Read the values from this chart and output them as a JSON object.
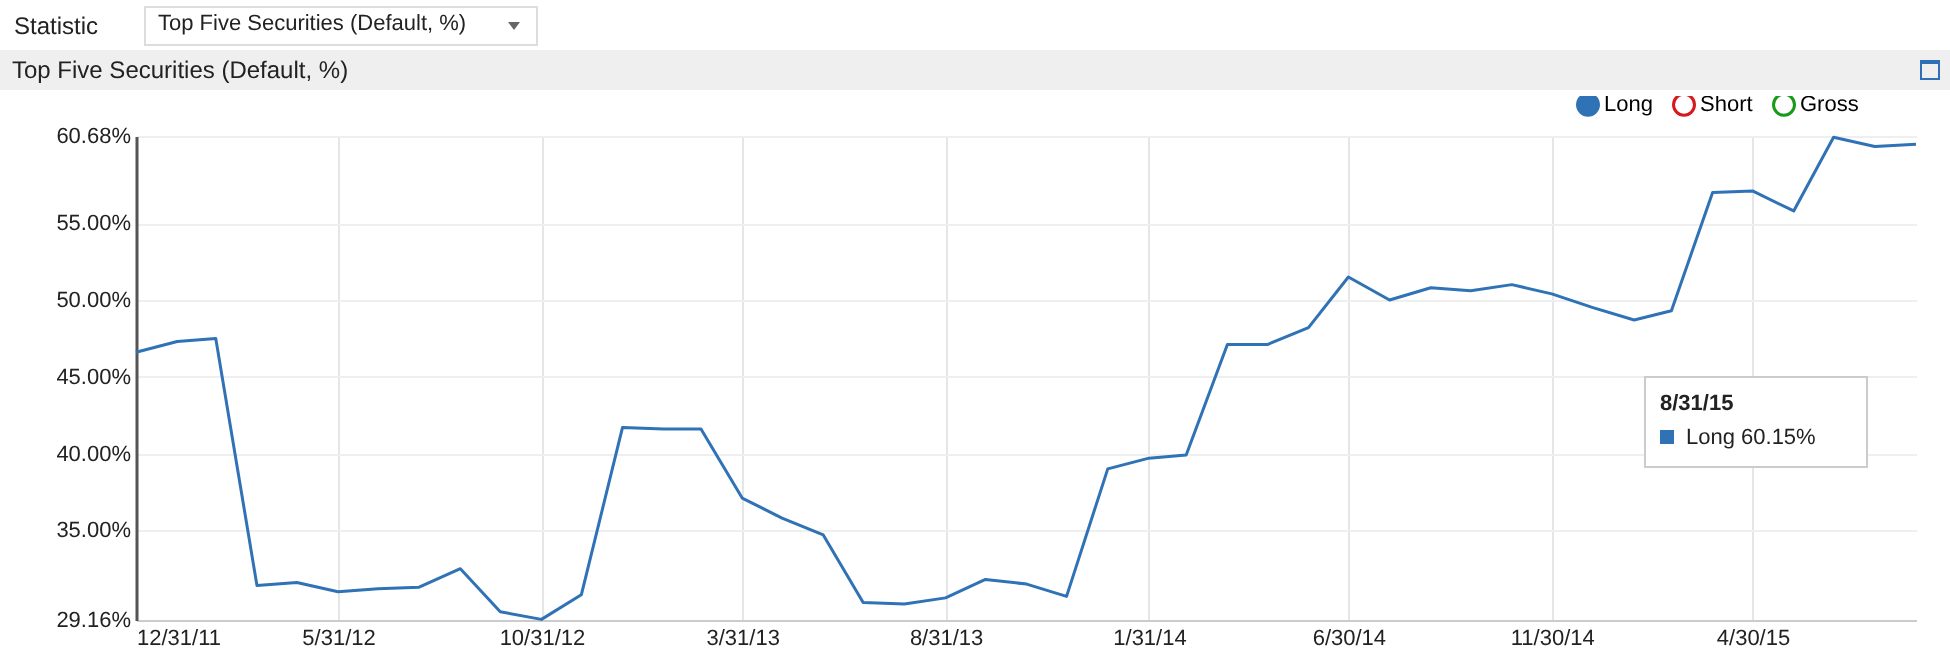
{
  "chart_data": {
    "type": "line",
    "title": "Top Five Securities (Default, %)",
    "annotations": [
      "Statistic",
      "Top Five Securities (Default, %)",
      "8/31/15",
      "Long 60.15%"
    ],
    "x": [
      "2011-12-31",
      "2012-01-31",
      "2012-02-29",
      "2012-03-31",
      "2012-04-30",
      "2012-05-31",
      "2012-06-30",
      "2012-07-31",
      "2012-08-31",
      "2012-09-30",
      "2012-10-31",
      "2012-11-30",
      "2012-12-31",
      "2013-01-31",
      "2013-02-28",
      "2013-03-31",
      "2013-04-30",
      "2013-05-31",
      "2013-06-30",
      "2013-07-31",
      "2013-08-31",
      "2013-09-30",
      "2013-10-31",
      "2013-11-30",
      "2013-12-31",
      "2014-01-31",
      "2014-02-28",
      "2014-03-31",
      "2014-04-30",
      "2014-05-31",
      "2014-06-30",
      "2014-07-31",
      "2014-08-31",
      "2014-09-30",
      "2014-10-31",
      "2014-11-30",
      "2014-12-31",
      "2015-01-31",
      "2015-02-28",
      "2015-03-31",
      "2015-04-30",
      "2015-05-31",
      "2015-06-30",
      "2015-07-31",
      "2015-08-31"
    ],
    "series": [
      {
        "name": "Long",
        "color": "#2f72b5",
        "values": [
          46.6,
          47.3,
          47.5,
          31.4,
          31.6,
          31.0,
          31.2,
          31.3,
          32.5,
          29.7,
          29.2,
          30.8,
          41.7,
          41.6,
          41.6,
          37.1,
          35.8,
          34.7,
          30.3,
          30.2,
          30.6,
          31.8,
          31.5,
          30.7,
          39.0,
          39.7,
          39.9,
          47.1,
          47.1,
          48.2,
          51.5,
          50.0,
          50.8,
          50.6,
          51.0,
          50.4,
          49.5,
          48.7,
          49.3,
          57.0,
          57.1,
          55.8,
          60.6,
          60.0,
          60.15
        ]
      },
      {
        "name": "Short",
        "color": "#d7191c",
        "values": [
          null,
          null,
          null,
          null,
          null,
          null,
          null,
          null,
          null,
          null,
          null,
          null,
          null,
          null,
          null,
          null,
          null,
          null,
          null,
          null,
          null,
          null,
          null,
          null,
          null,
          null,
          null,
          null,
          null,
          null,
          null,
          null,
          null,
          null,
          null,
          null,
          null,
          null,
          null,
          null,
          null,
          null,
          null,
          null,
          null
        ]
      },
      {
        "name": "Gross",
        "color": "#1a9a1a",
        "values": [
          null,
          null,
          null,
          null,
          null,
          null,
          null,
          null,
          null,
          null,
          null,
          null,
          null,
          null,
          null,
          null,
          null,
          null,
          null,
          null,
          null,
          null,
          null,
          null,
          null,
          null,
          null,
          null,
          null,
          null,
          null,
          null,
          null,
          null,
          null,
          null,
          null,
          null,
          null,
          null,
          null,
          null,
          null,
          null,
          null
        ]
      }
    ],
    "xlim": [
      "2011-12-31",
      "2015-08-31"
    ],
    "xticks": [
      {
        "value": "2011-12-31",
        "label": "12/31/11"
      },
      {
        "value": "2012-05-31",
        "label": "5/31/12"
      },
      {
        "value": "2012-10-31",
        "label": "10/31/12"
      },
      {
        "value": "2013-03-31",
        "label": "3/31/13"
      },
      {
        "value": "2013-08-31",
        "label": "8/31/13"
      },
      {
        "value": "2014-01-31",
        "label": "1/31/14"
      },
      {
        "value": "2014-06-30",
        "label": "6/30/14"
      },
      {
        "value": "2014-11-30",
        "label": "11/30/14"
      },
      {
        "value": "2015-04-30",
        "label": "4/30/15"
      }
    ],
    "ylim": [
      29.16,
      60.68
    ],
    "yticks": [
      {
        "value": 29.16,
        "label": "29.16%"
      },
      {
        "value": 35,
        "label": "35.00%"
      },
      {
        "value": 40,
        "label": "40.00%"
      },
      {
        "value": 45,
        "label": "45.00%"
      },
      {
        "value": 50,
        "label": "50.00%"
      },
      {
        "value": 55,
        "label": "55.00%"
      },
      {
        "value": 60.68,
        "label": "60.68%"
      }
    ],
    "grid": true,
    "legend": "top right",
    "line_style": "solid"
  }
}
